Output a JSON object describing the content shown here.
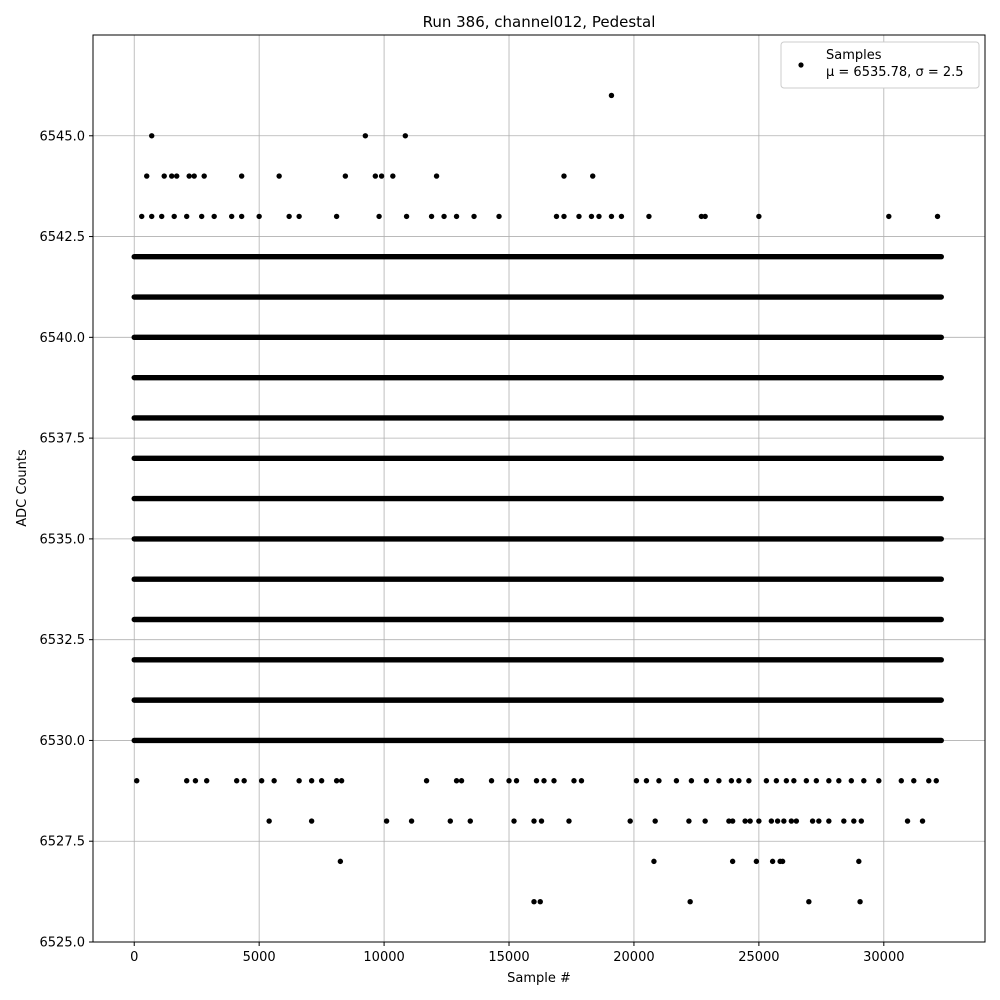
{
  "chart_data": {
    "type": "scatter",
    "title": "Run 386, channel012, Pedestal",
    "xlabel": "Sample #",
    "ylabel": "ADC Counts",
    "xlim": [
      -1650,
      34050
    ],
    "ylim": [
      6525.0,
      6547.5
    ],
    "x_ticks": [
      0,
      5000,
      10000,
      15000,
      20000,
      25000,
      30000
    ],
    "x_tick_labels": [
      "0",
      "5000",
      "10000",
      "15000",
      "20000",
      "25000",
      "30000"
    ],
    "y_ticks": [
      6525.0,
      6527.5,
      6530.0,
      6532.5,
      6535.0,
      6537.5,
      6540.0,
      6542.5,
      6545.0
    ],
    "y_tick_labels": [
      "6525.0",
      "6527.5",
      "6530.0",
      "6532.5",
      "6535.0",
      "6537.5",
      "6540.0",
      "6542.5",
      "6545.0"
    ],
    "grid": true,
    "legend": {
      "placement": "top-right",
      "entries": [
        {
          "line1": "Samples",
          "line2": "μ = 6535.78, σ = 2.5"
        }
      ]
    },
    "series": [
      {
        "name": "Samples",
        "color": "#000000",
        "x_range": [
          0,
          32300
        ],
        "dense_levels": [
          6530,
          6531,
          6532,
          6533,
          6534,
          6535,
          6536,
          6537,
          6538,
          6539,
          6540,
          6541,
          6542
        ],
        "outliers": [
          {
            "x": 700,
            "y": 6545
          },
          {
            "x": 9250,
            "y": 6545
          },
          {
            "x": 10850,
            "y": 6545
          },
          {
            "x": 19100,
            "y": 6546
          },
          {
            "x": 500,
            "y": 6544
          },
          {
            "x": 1200,
            "y": 6544
          },
          {
            "x": 1500,
            "y": 6544
          },
          {
            "x": 1700,
            "y": 6544
          },
          {
            "x": 2200,
            "y": 6544
          },
          {
            "x": 2400,
            "y": 6544
          },
          {
            "x": 2800,
            "y": 6544
          },
          {
            "x": 4300,
            "y": 6544
          },
          {
            "x": 5800,
            "y": 6544
          },
          {
            "x": 8450,
            "y": 6544
          },
          {
            "x": 9650,
            "y": 6544
          },
          {
            "x": 9900,
            "y": 6544
          },
          {
            "x": 10350,
            "y": 6544
          },
          {
            "x": 12100,
            "y": 6544
          },
          {
            "x": 17200,
            "y": 6544
          },
          {
            "x": 18350,
            "y": 6544
          },
          {
            "x": 8250,
            "y": 6527
          },
          {
            "x": 20800,
            "y": 6527
          },
          {
            "x": 23950,
            "y": 6527
          },
          {
            "x": 24900,
            "y": 6527
          },
          {
            "x": 25550,
            "y": 6527
          },
          {
            "x": 25850,
            "y": 6527
          },
          {
            "x": 25950,
            "y": 6527
          },
          {
            "x": 29000,
            "y": 6527
          },
          {
            "x": 16000,
            "y": 6526
          },
          {
            "x": 16250,
            "y": 6526
          },
          {
            "x": 22250,
            "y": 6526
          },
          {
            "x": 27000,
            "y": 6526
          },
          {
            "x": 29050,
            "y": 6526
          },
          {
            "x": 5400,
            "y": 6528
          },
          {
            "x": 7100,
            "y": 6528
          },
          {
            "x": 10100,
            "y": 6528
          },
          {
            "x": 11100,
            "y": 6528
          },
          {
            "x": 12650,
            "y": 6528
          },
          {
            "x": 13450,
            "y": 6528
          },
          {
            "x": 15200,
            "y": 6528
          },
          {
            "x": 16000,
            "y": 6528
          },
          {
            "x": 16300,
            "y": 6528
          },
          {
            "x": 17400,
            "y": 6528
          },
          {
            "x": 19850,
            "y": 6528
          },
          {
            "x": 20850,
            "y": 6528
          },
          {
            "x": 22200,
            "y": 6528
          },
          {
            "x": 22850,
            "y": 6528
          },
          {
            "x": 23800,
            "y": 6528
          },
          {
            "x": 23950,
            "y": 6528
          },
          {
            "x": 24450,
            "y": 6528
          },
          {
            "x": 24650,
            "y": 6528
          },
          {
            "x": 25000,
            "y": 6528
          },
          {
            "x": 25500,
            "y": 6528
          },
          {
            "x": 25750,
            "y": 6528
          },
          {
            "x": 26000,
            "y": 6528
          },
          {
            "x": 26300,
            "y": 6528
          },
          {
            "x": 26500,
            "y": 6528
          },
          {
            "x": 27150,
            "y": 6528
          },
          {
            "x": 27400,
            "y": 6528
          },
          {
            "x": 27800,
            "y": 6528
          },
          {
            "x": 28400,
            "y": 6528
          },
          {
            "x": 28800,
            "y": 6528
          },
          {
            "x": 29100,
            "y": 6528
          },
          {
            "x": 30950,
            "y": 6528
          },
          {
            "x": 31550,
            "y": 6528
          },
          {
            "x": 100,
            "y": 6529
          },
          {
            "x": 2100,
            "y": 6529
          },
          {
            "x": 2450,
            "y": 6529
          },
          {
            "x": 2900,
            "y": 6529
          },
          {
            "x": 4100,
            "y": 6529
          },
          {
            "x": 4400,
            "y": 6529
          },
          {
            "x": 5100,
            "y": 6529
          },
          {
            "x": 5600,
            "y": 6529
          },
          {
            "x": 6600,
            "y": 6529
          },
          {
            "x": 7100,
            "y": 6529
          },
          {
            "x": 7500,
            "y": 6529
          },
          {
            "x": 8100,
            "y": 6529
          },
          {
            "x": 8300,
            "y": 6529
          },
          {
            "x": 11700,
            "y": 6529
          },
          {
            "x": 12900,
            "y": 6529
          },
          {
            "x": 13100,
            "y": 6529
          },
          {
            "x": 14300,
            "y": 6529
          },
          {
            "x": 15000,
            "y": 6529
          },
          {
            "x": 15300,
            "y": 6529
          },
          {
            "x": 16100,
            "y": 6529
          },
          {
            "x": 16400,
            "y": 6529
          },
          {
            "x": 16800,
            "y": 6529
          },
          {
            "x": 17600,
            "y": 6529
          },
          {
            "x": 17900,
            "y": 6529
          },
          {
            "x": 20100,
            "y": 6529
          },
          {
            "x": 20500,
            "y": 6529
          },
          {
            "x": 21000,
            "y": 6529
          },
          {
            "x": 21700,
            "y": 6529
          },
          {
            "x": 22300,
            "y": 6529
          },
          {
            "x": 22900,
            "y": 6529
          },
          {
            "x": 23400,
            "y": 6529
          },
          {
            "x": 23900,
            "y": 6529
          },
          {
            "x": 24200,
            "y": 6529
          },
          {
            "x": 24600,
            "y": 6529
          },
          {
            "x": 25300,
            "y": 6529
          },
          {
            "x": 25700,
            "y": 6529
          },
          {
            "x": 26100,
            "y": 6529
          },
          {
            "x": 26400,
            "y": 6529
          },
          {
            "x": 26900,
            "y": 6529
          },
          {
            "x": 27300,
            "y": 6529
          },
          {
            "x": 27800,
            "y": 6529
          },
          {
            "x": 28200,
            "y": 6529
          },
          {
            "x": 28700,
            "y": 6529
          },
          {
            "x": 29200,
            "y": 6529
          },
          {
            "x": 29800,
            "y": 6529
          },
          {
            "x": 30700,
            "y": 6529
          },
          {
            "x": 31200,
            "y": 6529
          },
          {
            "x": 31800,
            "y": 6529
          },
          {
            "x": 32100,
            "y": 6529
          },
          {
            "x": 300,
            "y": 6543
          },
          {
            "x": 700,
            "y": 6543
          },
          {
            "x": 1100,
            "y": 6543
          },
          {
            "x": 1600,
            "y": 6543
          },
          {
            "x": 2100,
            "y": 6543
          },
          {
            "x": 2700,
            "y": 6543
          },
          {
            "x": 3200,
            "y": 6543
          },
          {
            "x": 3900,
            "y": 6543
          },
          {
            "x": 4300,
            "y": 6543
          },
          {
            "x": 5000,
            "y": 6543
          },
          {
            "x": 6200,
            "y": 6543
          },
          {
            "x": 6600,
            "y": 6543
          },
          {
            "x": 8100,
            "y": 6543
          },
          {
            "x": 9800,
            "y": 6543
          },
          {
            "x": 10900,
            "y": 6543
          },
          {
            "x": 11900,
            "y": 6543
          },
          {
            "x": 12400,
            "y": 6543
          },
          {
            "x": 12900,
            "y": 6543
          },
          {
            "x": 13600,
            "y": 6543
          },
          {
            "x": 14600,
            "y": 6543
          },
          {
            "x": 16900,
            "y": 6543
          },
          {
            "x": 17200,
            "y": 6543
          },
          {
            "x": 17800,
            "y": 6543
          },
          {
            "x": 18300,
            "y": 6543
          },
          {
            "x": 18600,
            "y": 6543
          },
          {
            "x": 19100,
            "y": 6543
          },
          {
            "x": 19500,
            "y": 6543
          },
          {
            "x": 20600,
            "y": 6543
          },
          {
            "x": 22700,
            "y": 6543
          },
          {
            "x": 22850,
            "y": 6543
          },
          {
            "x": 25000,
            "y": 6543
          },
          {
            "x": 30200,
            "y": 6543
          },
          {
            "x": 32150,
            "y": 6543
          }
        ]
      }
    ]
  }
}
